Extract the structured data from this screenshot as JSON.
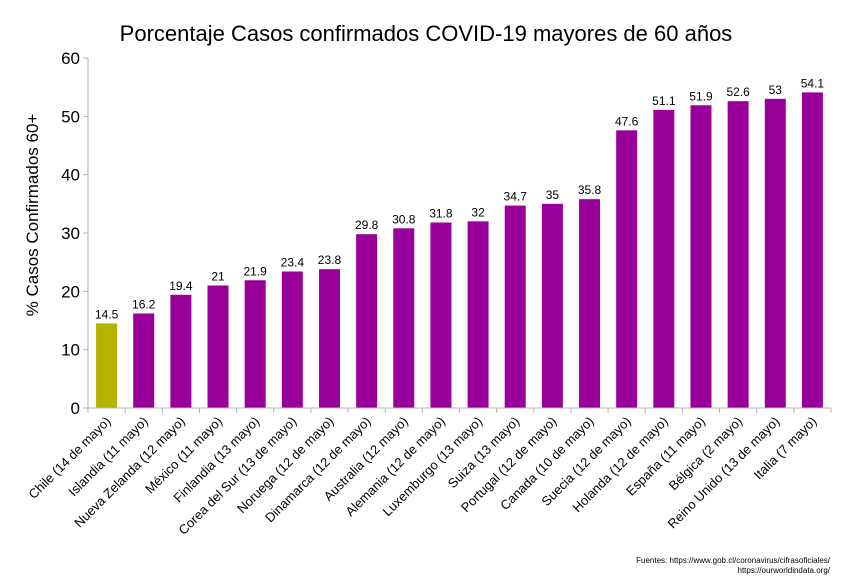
{
  "chart_data": {
    "type": "bar",
    "title": "Porcentaje Casos confirmados COVID-19 mayores de 60 años",
    "ylabel": "% Casos Confirmados 60+",
    "xlabel": "",
    "ylim": [
      0,
      60
    ],
    "yticks": [
      0,
      10,
      20,
      30,
      40,
      50,
      60
    ],
    "grid": false,
    "legend": "none",
    "categories": [
      "Chile (14 de mayo)",
      "Islandia (11 mayo)",
      "Nueva Zelanda (12 mayo)",
      "México (11 mayo)",
      "Finlandia (13 mayo)",
      "Corea del Sur (13 de mayo)",
      "Noruega (12 de mayo)",
      "Dinamarca (12 de mayo)",
      "Australia (12 mayo)",
      "Alemania (12 de mayo)",
      "Luxemburgo (13 mayo)",
      "Suiza (13 mayo)",
      "Portugal (12 de mayo)",
      "Canada (10 de mayo)",
      "Suecia (12 de mayo)",
      "Holanda (12 de mayo)",
      "España (11 mayo)",
      "Bélgica (2 mayo)",
      "Reino Unido (13 de mayo)",
      "Italia (7 mayo)"
    ],
    "values": [
      14.5,
      16.2,
      19.4,
      21,
      21.9,
      23.4,
      23.8,
      29.8,
      30.8,
      31.8,
      32,
      34.7,
      35,
      35.8,
      47.6,
      51.1,
      51.9,
      52.6,
      53,
      54.1
    ],
    "data_labels": [
      "14.5",
      "16.2",
      "19.4",
      "21",
      "21.9",
      "23.4",
      "23.8",
      "29.8",
      "30.8",
      "31.8",
      "32",
      "34.7",
      "35",
      "35.8",
      "47.6",
      "51.1",
      "51.9",
      "52.6",
      "53",
      "54.1"
    ],
    "colors": {
      "highlight": "#b3b300",
      "default": "#990099",
      "axis": "#b3b3b3"
    },
    "highlight_index": 0
  },
  "source": {
    "line1": "Fuentes: https://www.gob.cl/coronavirus/cifrasoficiales/",
    "line2": "https://ourworldindata.org/"
  }
}
